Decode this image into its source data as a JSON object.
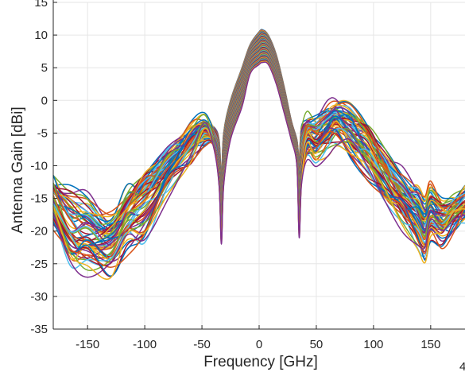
{
  "chart_data": {
    "type": "line",
    "title": "",
    "xlabel": "Frequency [GHz]",
    "ylabel": "Antenna Gain [dBi]",
    "xlim": [
      -180,
      180
    ],
    "ylim": [
      -35,
      15
    ],
    "xticks": [
      -150,
      -100,
      -50,
      0,
      50,
      100,
      150
    ],
    "yticks": [
      -35,
      -30,
      -25,
      -20,
      -15,
      -10,
      -5,
      0,
      5,
      10,
      15
    ],
    "xtick_labels": [
      "-150",
      "-100",
      "-50",
      "0",
      "50",
      "100",
      "150"
    ],
    "ytick_labels": [
      "-35",
      "-30",
      "-25",
      "-20",
      "-15",
      "-10",
      "-5",
      "0",
      "5",
      "10",
      "15"
    ],
    "grid": true,
    "legend": "none",
    "corner_text": "4",
    "series_count": 60,
    "colors": [
      "#0072BD",
      "#D95319",
      "#EDB120",
      "#7E2F8E",
      "#77AC30",
      "#4DBEEE",
      "#A2142F"
    ],
    "x": [
      -180,
      -165,
      -150,
      -130,
      -115,
      -100,
      -80,
      -60,
      -48,
      -40,
      -35,
      -33,
      -31,
      -25,
      -15,
      -8,
      0,
      3,
      8,
      15,
      22,
      28,
      33,
      35,
      37,
      42,
      50,
      60,
      68,
      80,
      95,
      110,
      125,
      138,
      145,
      150,
      160,
      170,
      180
    ],
    "series_summary": [
      {
        "name": "",
        "values": [
          -12,
          -14,
          -15,
          -19,
          -14,
          -12,
          -8,
          -5,
          -3.5,
          -4,
          -6,
          -12,
          -5,
          0,
          5,
          8.5,
          10.5,
          10.8,
          10,
          7,
          2,
          -3,
          -6,
          -9,
          -4,
          -3,
          -3.5,
          -2,
          -1,
          -2,
          -4,
          -8,
          -12,
          -14,
          -16,
          -14,
          -16,
          -15,
          -14
        ]
      },
      {
        "name": "",
        "values": [
          -15,
          -20,
          -21,
          -21,
          -17,
          -14,
          -10,
          -6,
          -4.5,
          -6,
          -10,
          -17,
          -9,
          -3,
          2,
          6.5,
          8,
          8.5,
          8,
          5,
          0,
          -4,
          -8,
          -14,
          -8,
          -5,
          -5,
          -4,
          -3,
          -4,
          -7,
          -11,
          -15,
          -17,
          -19,
          -17,
          -18,
          -17,
          -16
        ]
      },
      {
        "name": "",
        "values": [
          -18,
          -24,
          -25,
          -26,
          -22,
          -21,
          -14,
          -9,
          -5.5,
          -7,
          -13,
          -22,
          -13,
          -6,
          -1,
          4,
          5.5,
          5.8,
          5.5,
          2.5,
          -2,
          -6,
          -10,
          -21,
          -13,
          -8,
          -9,
          -7,
          -6,
          -8,
          -11,
          -15,
          -18,
          -22,
          -24,
          -20,
          -21,
          -19,
          -17
        ]
      }
    ]
  }
}
